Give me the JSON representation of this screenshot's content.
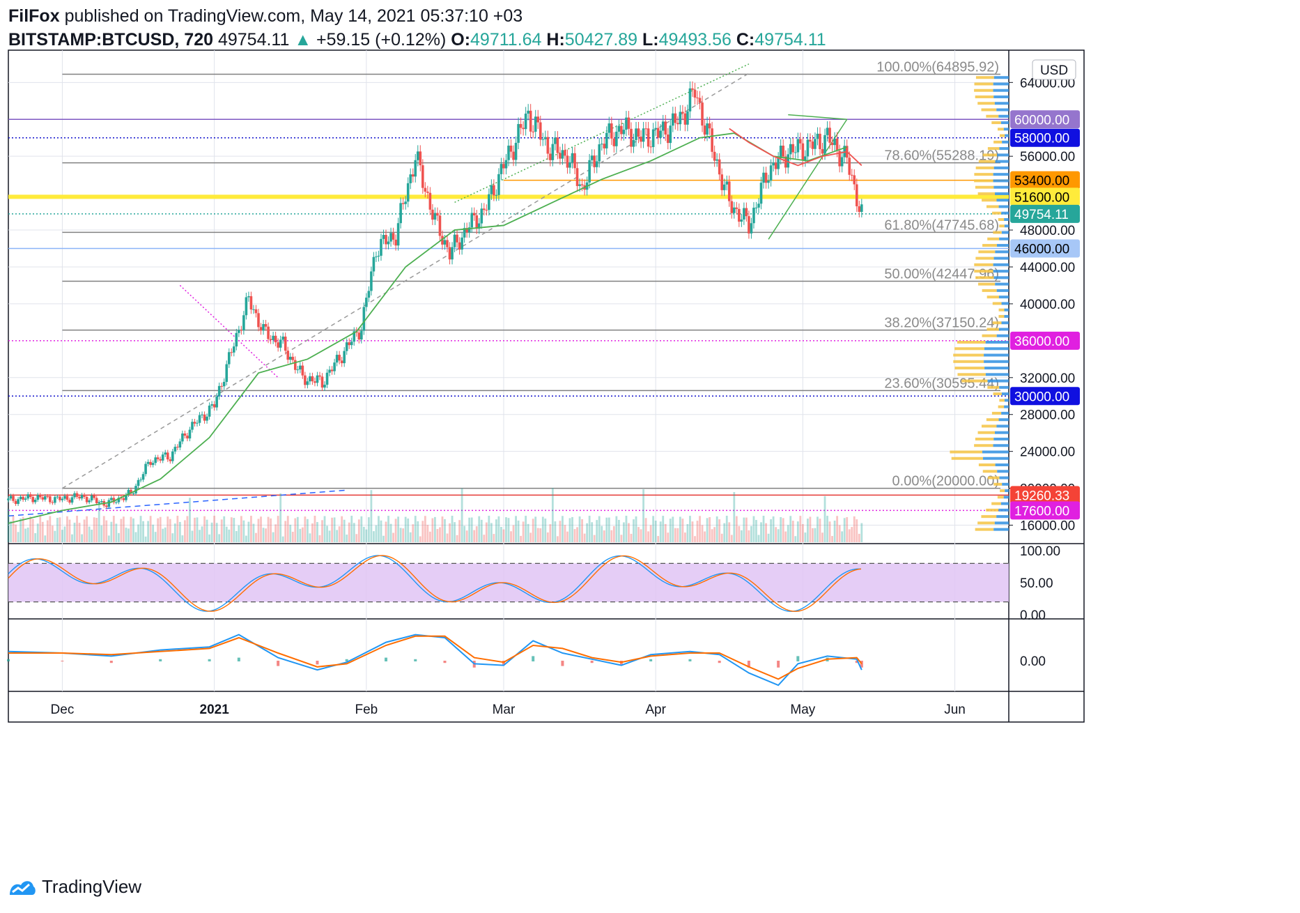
{
  "header": {
    "author": "FilFox",
    "published_text": "published on TradingView.com, May 14, 2021 05:37:10 +03",
    "symbol": "BITSTAMP:BTCUSD, 720",
    "last": "49754.11",
    "up_arrow": "▲",
    "change": "+59.15 (+0.12%)",
    "open_label": "O:",
    "open": "49711.64",
    "high_label": "H:",
    "high": "50427.89",
    "low_label": "L:",
    "low": "49493.56",
    "close_label": "C:",
    "close": "49754.11"
  },
  "footer": {
    "brand": "TradingView"
  },
  "colors": {
    "up": "#26a69a",
    "down": "#ef5350",
    "fib": "#808080",
    "ma": "#4caf50",
    "ma_red": "#ef5350",
    "support_blue": "#1010cc",
    "magenta": "#e020e0",
    "purple": "#7e57c2",
    "yellow": "#ffeb3b",
    "orange": "#ff9800",
    "stoch_band": "#e1c4f5",
    "macd_blue": "#2196f3",
    "macd_orange": "#ff6d00"
  },
  "chart_data": {
    "type": "candlestick",
    "currency_label": "USD",
    "y_range": [
      14000,
      67500
    ],
    "price_ticks": [
      16000,
      20000,
      24000,
      28000,
      32000,
      40000,
      44000,
      48000,
      56000,
      64000
    ],
    "price_tick_labels": [
      "16000.00",
      "20000.00",
      "24000.00",
      "28000.00",
      "32000.00",
      "40000.00",
      "44000.00",
      "48000.00",
      "56000.00",
      "64000.00"
    ],
    "x_labels": [
      {
        "label": "Dec",
        "day": 0,
        "bold": false
      },
      {
        "label": "2021",
        "day": 31,
        "bold": true
      },
      {
        "label": "Feb",
        "day": 62,
        "bold": false
      },
      {
        "label": "Mar",
        "day": 90,
        "bold": false
      },
      {
        "label": "Apr",
        "day": 121,
        "bold": false
      },
      {
        "label": "May",
        "day": 151,
        "bold": false
      },
      {
        "label": "Jun",
        "day": 182,
        "bold": false
      }
    ],
    "x_range_days": [
      -11,
      193
    ],
    "fib_levels": [
      {
        "label": "100.00%(64895.92)",
        "price": 64895.92
      },
      {
        "label": "78.60%(55288.19)",
        "price": 55288.19
      },
      {
        "label": "61.80%(47745.68)",
        "price": 47745.68
      },
      {
        "label": "50.00%(42447.96)",
        "price": 42447.96
      },
      {
        "label": "38.20%(37150.24)",
        "price": 37150.24
      },
      {
        "label": "23.60%(30595.44)",
        "price": 30595.44
      },
      {
        "label": "0.00%(20000.00)",
        "price": 20000.0
      }
    ],
    "horizontal_levels": [
      {
        "label": "60000.00",
        "price": 60000,
        "style": "solid",
        "color": "#7e57c2",
        "bg": "#9575cd"
      },
      {
        "label": "58000.00",
        "price": 58000,
        "style": "dotted",
        "color": "#1010cc",
        "bg": "#1010e0"
      },
      {
        "label": "53400.00",
        "price": 53400,
        "style": "solid",
        "color": "#ff9800",
        "bg": "#ff9800",
        "fg": "#000000"
      },
      {
        "label": "51600.00",
        "price": 51600,
        "style": "thick",
        "color": "#ffeb3b",
        "bg": "#ffeb3b",
        "fg": "#000000"
      },
      {
        "label": "49754.11",
        "price": 49754.11,
        "style": "dotted-green",
        "color": "#26a69a",
        "bg": "#26a69a"
      },
      {
        "label": "46000.00",
        "price": 46000,
        "style": "solid",
        "color": "#8ab4f8",
        "bg": "#a7c7f7",
        "fg": "#000000"
      },
      {
        "label": "36000.00",
        "price": 36000,
        "style": "dotted",
        "color": "#e020e0",
        "bg": "#e020e0"
      },
      {
        "label": "30000.00",
        "price": 30000,
        "style": "dotted",
        "color": "#1010cc",
        "bg": "#1010e0"
      },
      {
        "label": "19260.33",
        "price": 19260.33,
        "style": "solid",
        "color": "#e53935",
        "bg": "#f44336"
      },
      {
        "label": "17600.00",
        "price": 17600,
        "style": "dotted",
        "color": "#e020e0",
        "bg": "#e020e0"
      }
    ],
    "series": [
      {
        "name": "BTCUSD close",
        "days": [
          -11,
          -6,
          -1,
          4,
          9,
          14,
          18,
          22,
          26,
          31,
          34,
          38,
          41,
          45,
          49,
          53,
          57,
          61,
          64,
          68,
          72,
          76,
          79,
          83,
          86,
          90,
          95,
          99,
          103,
          106,
          110,
          114,
          118,
          122,
          126,
          129,
          133,
          136,
          140,
          144,
          148,
          152,
          156,
          160,
          163
        ],
        "values": [
          18700,
          19000,
          18800,
          19100,
          18300,
          19400,
          23000,
          23500,
          26500,
          29000,
          34000,
          40500,
          37000,
          35500,
          32000,
          31500,
          34500,
          37500,
          46000,
          47500,
          56000,
          49000,
          45500,
          48500,
          50000,
          55000,
          60500,
          57000,
          56000,
          52500,
          57500,
          59000,
          58000,
          58500,
          60000,
          63000,
          56000,
          51000,
          48500,
          54500,
          56500,
          57000,
          58000,
          55500,
          49754.11
        ]
      },
      {
        "name": "MA (green)",
        "days": [
          -11,
          0,
          10,
          20,
          30,
          40,
          50,
          60,
          70,
          80,
          90,
          100,
          110,
          120,
          130,
          137,
          145,
          152,
          160
        ],
        "values": [
          16200,
          17600,
          18500,
          21000,
          25500,
          32500,
          34000,
          37000,
          44000,
          48000,
          48500,
          51000,
          53500,
          55500,
          58000,
          58500,
          56000,
          55500,
          57000
        ]
      },
      {
        "name": "MA (red)",
        "days": [
          136,
          140,
          145,
          150,
          155,
          160,
          163
        ],
        "values": [
          59000,
          57500,
          56000,
          55000,
          56000,
          56500,
          55000
        ]
      }
    ],
    "stoch_rsi": {
      "ticks": [
        0,
        50,
        100
      ],
      "tick_labels": [
        "0.00",
        "50.00",
        "100.00"
      ],
      "band": [
        20,
        80
      ]
    },
    "macd": {
      "ticks": [
        0
      ],
      "tick_labels": [
        "0.00"
      ],
      "macd_line": {
        "days": [
          -11,
          0,
          10,
          20,
          30,
          36,
          44,
          52,
          58,
          66,
          72,
          78,
          84,
          90,
          96,
          102,
          108,
          114,
          120,
          128,
          134,
          140,
          146,
          150,
          156,
          162,
          163
        ],
        "values": [
          0.6,
          0.5,
          0.3,
          0.7,
          0.9,
          1.7,
          0.2,
          -0.6,
          -0.1,
          1.2,
          1.7,
          1.5,
          -0.2,
          -0.3,
          1.3,
          0.5,
          0.1,
          -0.3,
          0.4,
          0.6,
          0.4,
          -0.8,
          -1.6,
          -0.2,
          0.3,
          0.1,
          -0.6
        ]
      },
      "signal_line": {
        "days": [
          -11,
          0,
          10,
          20,
          30,
          36,
          44,
          52,
          58,
          66,
          72,
          78,
          84,
          90,
          96,
          102,
          108,
          114,
          120,
          128,
          134,
          140,
          146,
          150,
          156,
          162,
          163
        ],
        "values": [
          0.5,
          0.5,
          0.4,
          0.6,
          0.8,
          1.5,
          0.5,
          -0.4,
          -0.2,
          1.0,
          1.6,
          1.6,
          0.2,
          -0.1,
          1.0,
          0.8,
          0.2,
          -0.1,
          0.3,
          0.5,
          0.5,
          -0.4,
          -1.2,
          -0.5,
          0.1,
          0.2,
          -0.2
        ]
      }
    }
  }
}
